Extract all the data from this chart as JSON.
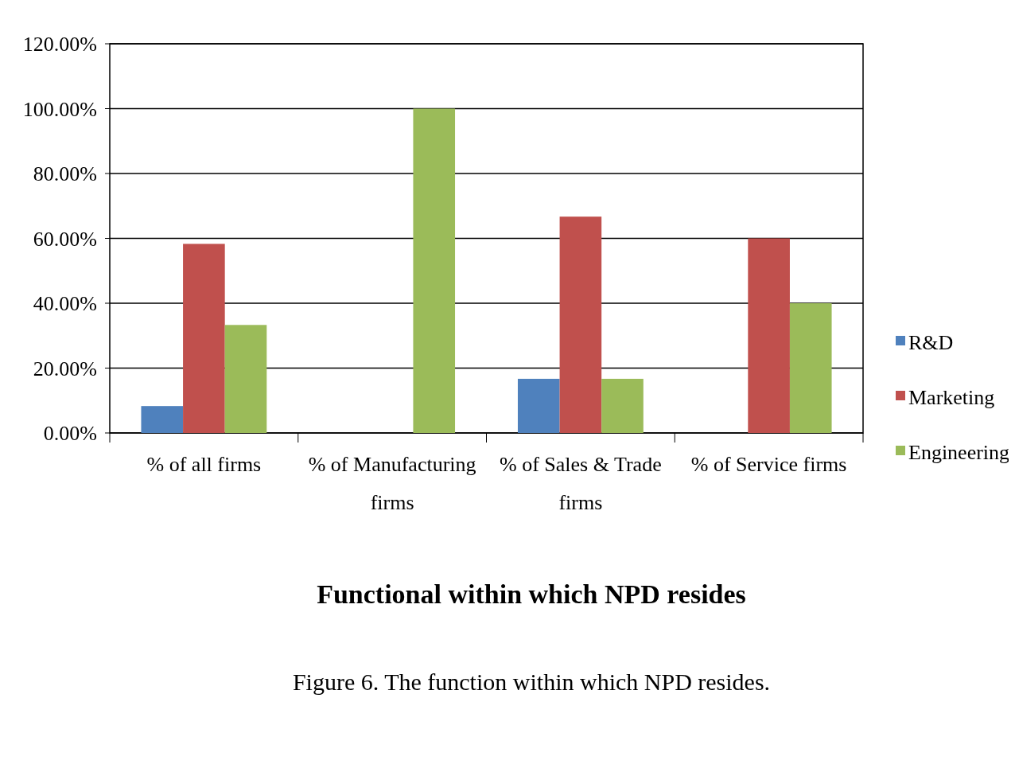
{
  "chart_data": {
    "type": "bar",
    "title": "Functional within which NPD resides",
    "categories": [
      "% of all firms",
      "% of Manufacturing firms",
      "% of Sales & Trade firms",
      "% of Service firms"
    ],
    "series": [
      {
        "name": "R&D",
        "color": "#4f81bd",
        "values": [
          8.3,
          0,
          16.7,
          0
        ]
      },
      {
        "name": "Marketing",
        "color": "#c0504d",
        "values": [
          58.3,
          0,
          66.7,
          60
        ]
      },
      {
        "name": "Engineering",
        "color": "#9bbb59",
        "values": [
          33.3,
          100,
          16.7,
          40
        ]
      }
    ],
    "ylim": [
      0,
      120
    ],
    "yticks": [
      {
        "value": 0,
        "label": "0.00%"
      },
      {
        "value": 20,
        "label": "20.00%"
      },
      {
        "value": 40,
        "label": "40.00%"
      },
      {
        "value": 60,
        "label": "60.00%"
      },
      {
        "value": 80,
        "label": "80.00%"
      },
      {
        "value": 100,
        "label": "100.00%"
      },
      {
        "value": 120,
        "label": "120.00%"
      }
    ],
    "grid": "y",
    "legend": "right",
    "annotations": [
      "Figure 6. The function within which NPD resides."
    ]
  }
}
